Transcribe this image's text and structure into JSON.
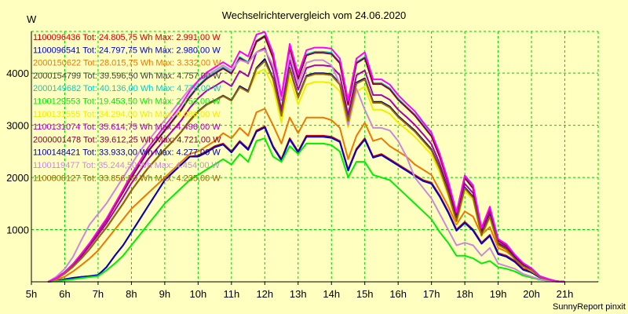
{
  "chart_data": {
    "type": "line",
    "title": "Wechselrichtervergleich vom 24.06.2020",
    "ylabel": "W",
    "xlabel": "",
    "credit": "SunnyReport pinxit",
    "background_color": "#ffffc0",
    "grid": true,
    "grid_color": "#00cc00",
    "legend_position": "top-left",
    "x_range_hours": [
      5,
      22
    ],
    "ylim": [
      0,
      4800
    ],
    "x_tick_labels": [
      "5h",
      "6h",
      "7h",
      "8h",
      "9h",
      "10h",
      "11h",
      "12h",
      "13h",
      "14h",
      "15h",
      "16h",
      "17h",
      "18h",
      "19h",
      "20h",
      "21h"
    ],
    "y_ticks": [
      1000,
      2000,
      3000,
      4000
    ],
    "y_tick_labels": [
      "1000",
      "2000",
      "3000",
      "4000"
    ],
    "x": [
      5.5,
      5.75,
      6,
      6.25,
      6.5,
      6.75,
      7,
      7.25,
      7.5,
      7.75,
      8,
      8.25,
      8.5,
      8.75,
      9,
      9.25,
      9.5,
      9.75,
      10,
      10.25,
      10.5,
      10.75,
      11,
      11.25,
      11.5,
      11.75,
      12,
      12.25,
      12.5,
      12.75,
      13,
      13.25,
      13.5,
      13.75,
      14,
      14.25,
      14.5,
      14.75,
      15,
      15.25,
      15.5,
      15.75,
      16,
      16.25,
      16.5,
      16.75,
      17,
      17.25,
      17.5,
      17.75,
      18,
      18.25,
      18.5,
      18.75,
      19,
      19.25,
      19.5,
      19.75,
      20,
      20.25,
      20.5,
      20.75,
      21
    ],
    "series": [
      {
        "name": "1100096436 Tot: 24.805,75 Wh Max: 2.991,00 W",
        "color": "#cc0000",
        "values": [
          0,
          20,
          50,
          75,
          95,
          110,
          130,
          280,
          500,
          700,
          950,
          1200,
          1450,
          1700,
          1950,
          2100,
          2250,
          2400,
          2420,
          2500,
          2600,
          2650,
          2500,
          2700,
          2550,
          2900,
          2980,
          2600,
          2350,
          2750,
          2500,
          2800,
          2800,
          2800,
          2780,
          2700,
          2150,
          2550,
          2750,
          2400,
          2450,
          2350,
          2250,
          2150,
          2050,
          1950,
          1900,
          1650,
          1350,
          1000,
          1150,
          1000,
          750,
          900,
          550,
          500,
          400,
          250,
          200,
          100,
          50,
          10,
          0
        ]
      },
      {
        "name": "1100096541 Tot: 24.797,75 Wh Max: 2.980,00 W",
        "color": "#0000cc",
        "values": [
          0,
          20,
          50,
          75,
          95,
          110,
          130,
          280,
          500,
          700,
          950,
          1200,
          1450,
          1700,
          1950,
          2100,
          2250,
          2400,
          2400,
          2480,
          2580,
          2630,
          2480,
          2680,
          2530,
          2880,
          2960,
          2580,
          2330,
          2730,
          2480,
          2780,
          2780,
          2780,
          2760,
          2680,
          2130,
          2530,
          2730,
          2380,
          2430,
          2330,
          2230,
          2130,
          2030,
          1930,
          1880,
          1630,
          1330,
          980,
          1130,
          980,
          730,
          880,
          530,
          480,
          380,
          230,
          180,
          80,
          40,
          5,
          0
        ]
      },
      {
        "name": "2000150622 Tot: 28.015,75 Wh Max: 3.332,00 W",
        "color": "#ee7700",
        "values": [
          0,
          40,
          100,
          200,
          320,
          450,
          600,
          800,
          1000,
          1200,
          1400,
          1550,
          1700,
          1850,
          2000,
          2150,
          2300,
          2450,
          2500,
          2600,
          2700,
          2850,
          2750,
          2950,
          2800,
          3250,
          3320,
          3000,
          2650,
          3150,
          2850,
          3150,
          3150,
          3150,
          3100,
          2950,
          2350,
          2800,
          3050,
          2700,
          2750,
          2600,
          2500,
          2400,
          2250,
          2150,
          2050,
          1750,
          1450,
          1100,
          1350,
          1250,
          900,
          1050,
          650,
          580,
          450,
          300,
          200,
          100,
          50,
          10,
          0
        ]
      },
      {
        "name": "2000154799 Tot: 39.596,50 Wh Max: 4.757,00 W",
        "color": "#404040",
        "values": [
          0,
          70,
          180,
          330,
          520,
          720,
          950,
          1180,
          1450,
          1720,
          2000,
          2250,
          2500,
          2700,
          2900,
          3100,
          3300,
          3550,
          3750,
          3900,
          4000,
          4100,
          4000,
          4300,
          4200,
          4600,
          4700,
          4300,
          3500,
          4500,
          3900,
          4350,
          4400,
          4400,
          4380,
          4200,
          3400,
          4200,
          4300,
          3800,
          3800,
          3700,
          3500,
          3350,
          3200,
          3000,
          2800,
          2400,
          1900,
          1300,
          2000,
          1800,
          1000,
          1400,
          800,
          700,
          500,
          350,
          250,
          100,
          50,
          10,
          0
        ]
      },
      {
        "name": "2000149682 Tot: 40.136,00 Wh Max: 4.776,00 W",
        "color": "#00cccc",
        "values": [
          0,
          75,
          190,
          340,
          530,
          730,
          960,
          1190,
          1460,
          1730,
          2010,
          2260,
          2510,
          2710,
          2910,
          3110,
          3310,
          3560,
          3760,
          3910,
          4010,
          4110,
          4010,
          4310,
          4210,
          4620,
          4720,
          4310,
          3510,
          4510,
          3910,
          4360,
          4410,
          4410,
          4390,
          4210,
          3410,
          4210,
          4310,
          3810,
          3810,
          3710,
          3510,
          3360,
          3210,
          3010,
          2810,
          2410,
          1910,
          1310,
          2010,
          1810,
          1010,
          1410,
          810,
          710,
          510,
          360,
          260,
          110,
          55,
          12,
          0
        ]
      },
      {
        "name": "1100129553 Tot: 19.453,50 Wh Max: 2.753,00 W",
        "color": "#00ee00",
        "values": [
          0,
          10,
          30,
          50,
          70,
          90,
          110,
          220,
          350,
          500,
          700,
          900,
          1100,
          1300,
          1500,
          1650,
          1800,
          1950,
          2050,
          2150,
          2250,
          2350,
          2250,
          2450,
          2300,
          2700,
          2750,
          2400,
          2300,
          2600,
          2450,
          2650,
          2650,
          2650,
          2620,
          2500,
          2000,
          2300,
          2300,
          2050,
          2000,
          1950,
          1800,
          1650,
          1500,
          1350,
          1200,
          950,
          750,
          500,
          500,
          450,
          350,
          400,
          280,
          250,
          200,
          120,
          80,
          40,
          20,
          5,
          0
        ]
      },
      {
        "name": "1100131555 Tot: 34.294,00 Wh Max: 4.086,00 W",
        "color": "#eeee00",
        "values": [
          0,
          60,
          160,
          290,
          450,
          630,
          840,
          1040,
          1270,
          1500,
          1750,
          1970,
          2180,
          2360,
          2540,
          2700,
          2880,
          3090,
          3270,
          3400,
          3480,
          3570,
          3480,
          3740,
          3650,
          4000,
          4080,
          3740,
          3050,
          3920,
          3400,
          3780,
          3830,
          3830,
          3810,
          3650,
          2960,
          3650,
          3740,
          3300,
          3300,
          3220,
          3050,
          2920,
          2780,
          2610,
          2440,
          2090,
          1650,
          1130,
          1740,
          1570,
          870,
          1220,
          700,
          610,
          440,
          300,
          220,
          90,
          45,
          9,
          0
        ]
      },
      {
        "name": "1100131074 Tot: 35.614,75 Wh Max: 4.496,00 W",
        "color": "#aa00aa",
        "values": [
          0,
          65,
          170,
          310,
          490,
          690,
          900,
          1120,
          1370,
          1620,
          1890,
          2120,
          2350,
          2540,
          2730,
          2910,
          3100,
          3330,
          3520,
          3660,
          3750,
          3850,
          3750,
          4040,
          3940,
          4400,
          4480,
          4050,
          3300,
          4250,
          3680,
          4100,
          4150,
          4150,
          4130,
          3960,
          3200,
          3960,
          4050,
          3580,
          3580,
          3490,
          3300,
          3160,
          3010,
          2830,
          2640,
          2260,
          1790,
          1220,
          1880,
          1700,
          940,
          1320,
          750,
          660,
          470,
          330,
          240,
          95,
          47,
          10,
          0
        ]
      },
      {
        "name": "2000001478 Tot: 39.612,25 Wh Max: 4.721,00 W",
        "color": "#880033",
        "values": [
          0,
          70,
          180,
          330,
          520,
          720,
          950,
          1180,
          1450,
          1720,
          2000,
          2250,
          2500,
          2700,
          2900,
          3100,
          3300,
          3540,
          3740,
          3890,
          3990,
          4090,
          3990,
          4290,
          4190,
          4610,
          4710,
          4290,
          3490,
          4490,
          3890,
          4340,
          4390,
          4390,
          4370,
          4190,
          3390,
          4190,
          4290,
          3790,
          3790,
          3690,
          3490,
          3340,
          3190,
          2990,
          2790,
          2390,
          1890,
          1290,
          1990,
          1790,
          990,
          1390,
          790,
          690,
          490,
          340,
          240,
          95,
          48,
          10,
          0
        ]
      },
      {
        "name": "1100148421 Tot: 33.933,00 Wh Max: 4.277,00 W",
        "color": "#000099",
        "values": [
          0,
          60,
          160,
          290,
          450,
          630,
          840,
          1040,
          1270,
          1500,
          1750,
          1970,
          2180,
          2360,
          2540,
          2700,
          2880,
          3090,
          3270,
          3400,
          3480,
          3570,
          3480,
          3750,
          3660,
          4100,
          4270,
          3900,
          3200,
          4100,
          3550,
          3950,
          4000,
          4000,
          3980,
          3800,
          3100,
          3820,
          3900,
          3450,
          3450,
          3360,
          3180,
          3040,
          2900,
          2720,
          2540,
          2180,
          1720,
          1180,
          1810,
          1630,
          900,
          1270,
          720,
          630,
          450,
          310,
          230,
          90,
          45,
          9,
          0
        ]
      },
      {
        "name": "1100119477 Tot: 35.244,50 Wh Max: 4.454,00 W",
        "color": "#cc88dd",
        "values": [
          0,
          100,
          250,
          480,
          800,
          1100,
          1300,
          1500,
          1750,
          2000,
          2250,
          2500,
          2700,
          2900,
          3100,
          3300,
          3500,
          3700,
          3850,
          3950,
          4050,
          4150,
          4050,
          4250,
          4200,
          4400,
          4450,
          4150,
          3500,
          4350,
          3800,
          4200,
          4250,
          4250,
          4150,
          3800,
          3000,
          3700,
          3300,
          2950,
          2950,
          2900,
          2700,
          2400,
          2000,
          1800,
          1600,
          1300,
          1000,
          700,
          750,
          700,
          500,
          650,
          350,
          300,
          250,
          150,
          100,
          50,
          20,
          5,
          0
        ]
      },
      {
        "name": "1100808127 Tot: 33.856,50 Wh Max: 4.235,00 W",
        "color": "#996600",
        "values": [
          0,
          60,
          160,
          290,
          450,
          630,
          840,
          1040,
          1270,
          1500,
          1750,
          1970,
          2180,
          2360,
          2540,
          2700,
          2880,
          3080,
          3260,
          3390,
          3470,
          3560,
          3470,
          3730,
          3640,
          4080,
          4230,
          3880,
          3180,
          4080,
          3530,
          3930,
          3980,
          3980,
          3960,
          3780,
          3080,
          3800,
          3880,
          3430,
          3430,
          3340,
          3160,
          3020,
          2880,
          2700,
          2520,
          2160,
          1700,
          1160,
          1790,
          1610,
          890,
          1250,
          710,
          620,
          440,
          300,
          225,
          88,
          44,
          9,
          0
        ]
      },
      {
        "name": "",
        "color": "#ff00ff",
        "values": [
          0,
          75,
          190,
          345,
          540,
          745,
          980,
          1210,
          1490,
          1770,
          2060,
          2310,
          2570,
          2780,
          2990,
          3190,
          3400,
          3650,
          3850,
          4010,
          4110,
          4210,
          4110,
          4420,
          4320,
          4740,
          4790,
          4380,
          3560,
          4560,
          3980,
          4440,
          4490,
          4490,
          4470,
          4280,
          3470,
          4280,
          4400,
          3880,
          3880,
          3780,
          3580,
          3420,
          3270,
          3060,
          2860,
          2450,
          1940,
          1330,
          2040,
          1850,
          1030,
          1440,
          820,
          720,
          520,
          360,
          260,
          110,
          55,
          12,
          0
        ]
      }
    ]
  }
}
